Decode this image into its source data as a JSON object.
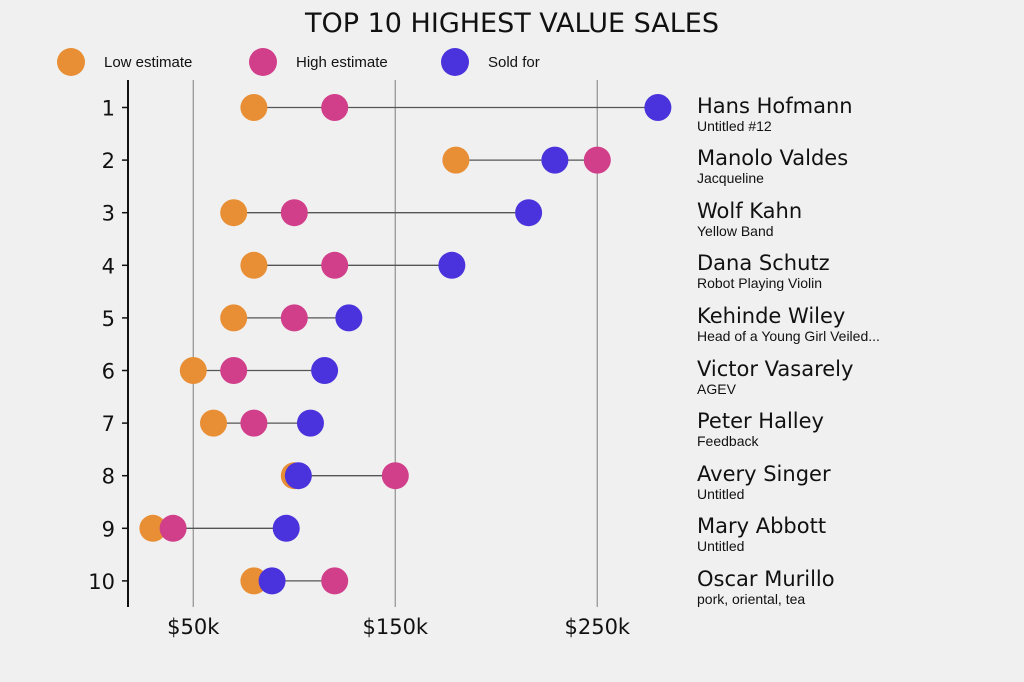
{
  "colors": {
    "low": "#e88f35",
    "high": "#d13e8a",
    "sold": "#4a33dc",
    "axis": "#111111",
    "grid": "#9e9e9e",
    "connector": "#555555",
    "background": "#f0f0f0"
  },
  "chart_data": {
    "type": "scatter",
    "subtype": "dumbbell",
    "title": "TOP 10 HIGHEST VALUE SALES",
    "xlabel": "",
    "ylabel": "",
    "xlim": [
      0,
      290
    ],
    "x_unit": "thousand USD",
    "x_ticks": [
      50,
      150,
      250
    ],
    "x_tick_labels": [
      "$50k",
      "$150k",
      "$250k"
    ],
    "grid": "vertical",
    "legend_position": "top-left",
    "legend": [
      {
        "key": "low",
        "label": "Low estimate"
      },
      {
        "key": "high",
        "label": "High estimate"
      },
      {
        "key": "sold",
        "label": "Sold for"
      }
    ],
    "categories": [
      "1",
      "2",
      "3",
      "4",
      "5",
      "6",
      "7",
      "8",
      "9",
      "10"
    ],
    "rows": [
      {
        "rank": "1",
        "artist": "Hans Hofmann",
        "work": "Untitled #12",
        "low": 80,
        "high": 120,
        "sold": 280
      },
      {
        "rank": "2",
        "artist": "Manolo Valdes",
        "work": "Jacqueline",
        "low": 180,
        "high": 250,
        "sold": 229
      },
      {
        "rank": "3",
        "artist": "Wolf Kahn",
        "work": "Yellow Band",
        "low": 70,
        "high": 100,
        "sold": 216
      },
      {
        "rank": "4",
        "artist": "Dana Schutz",
        "work": "Robot Playing Violin",
        "low": 80,
        "high": 120,
        "sold": 178
      },
      {
        "rank": "5",
        "artist": "Kehinde Wiley",
        "work": "Head of a Young Girl Veiled...",
        "low": 70,
        "high": 100,
        "sold": 127
      },
      {
        "rank": "6",
        "artist": "Victor Vasarely",
        "work": "AGEV",
        "low": 50,
        "high": 70,
        "sold": 115
      },
      {
        "rank": "7",
        "artist": "Peter Halley",
        "work": "Feedback",
        "low": 60,
        "high": 80,
        "sold": 108
      },
      {
        "rank": "8",
        "artist": "Avery Singer",
        "work": "Untitled",
        "low": 100,
        "high": 150,
        "sold": 102
      },
      {
        "rank": "9",
        "artist": "Mary Abbott",
        "work": "Untitled",
        "low": 30,
        "high": 40,
        "sold": 96
      },
      {
        "rank": "10",
        "artist": "Oscar Murillo",
        "work": "pork, oriental, tea",
        "low": 80,
        "high": 120,
        "sold": 89
      }
    ]
  }
}
